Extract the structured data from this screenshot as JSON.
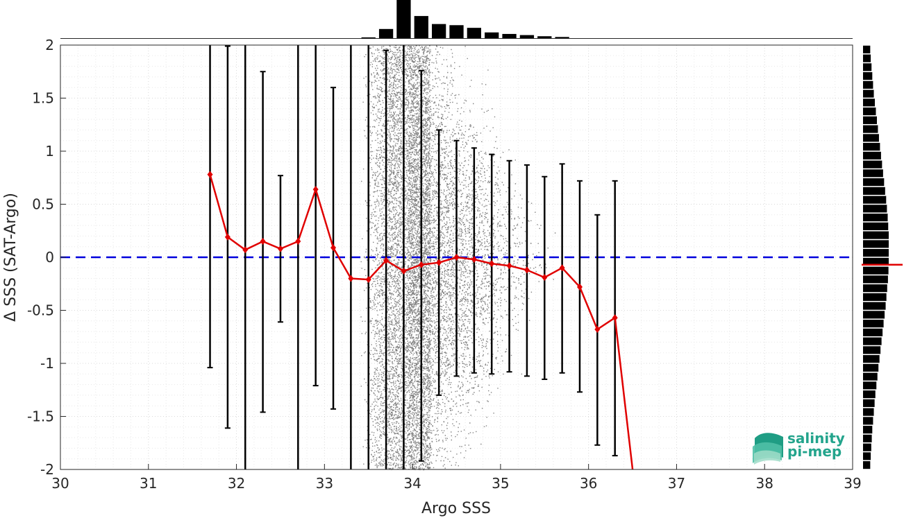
{
  "chart_data": {
    "type": "scatter",
    "title": "",
    "xlabel": "Argo SSS",
    "ylabel": "Δ SSS (SAT-Argo)",
    "xlim": [
      30,
      39
    ],
    "ylim": [
      -2,
      2
    ],
    "x_ticks": [
      "30",
      "31",
      "32",
      "33",
      "34",
      "35",
      "36",
      "37",
      "38",
      "39"
    ],
    "y_ticks": [
      "2",
      "1.5",
      "1",
      "0.5",
      "0",
      "-0.5",
      "-1",
      "-1.5",
      "-2"
    ],
    "grid": true,
    "reference_line": {
      "y": 0,
      "style": "dashed",
      "color": "#0000dd"
    },
    "scatter_cloud": {
      "description_color": "#808080",
      "x_range": [
        33.5,
        35.9
      ],
      "y_range": [
        -2,
        2
      ]
    },
    "series": [
      {
        "type": "line",
        "color": "#e00000",
        "x": [
          31.7,
          31.9,
          32.1,
          32.3,
          32.5,
          32.7,
          32.9,
          33.1,
          33.3,
          33.5,
          33.7,
          33.9,
          34.1,
          34.3,
          34.5,
          34.7,
          34.9,
          35.1,
          35.3,
          35.5,
          35.7,
          35.9,
          36.1,
          36.3
        ],
        "y": [
          0.78,
          0.19,
          0.07,
          0.15,
          0.08,
          0.15,
          0.64,
          0.09,
          -0.2,
          -0.21,
          -0.03,
          -0.13,
          -0.07,
          -0.05,
          0.0,
          -0.02,
          -0.06,
          -0.08,
          -0.12,
          -0.19,
          -0.1,
          -0.28,
          -0.68,
          -0.57
        ],
        "tail_to": [
          36.5,
          -2.0
        ]
      }
    ],
    "error_bars": [
      {
        "x": 31.7,
        "low": -1.04,
        "high": 2.0,
        "capped_top": false
      },
      {
        "x": 31.9,
        "low": -1.61,
        "high": 1.99
      },
      {
        "x": 32.1,
        "low": -2.0,
        "high": 2.0
      },
      {
        "x": 32.3,
        "low": -1.46,
        "high": 1.75
      },
      {
        "x": 32.5,
        "low": -0.61,
        "high": 0.77
      },
      {
        "x": 32.7,
        "low": -2.0,
        "high": 2.0
      },
      {
        "x": 32.9,
        "low": -1.21,
        "high": 2.0
      },
      {
        "x": 33.1,
        "low": -1.43,
        "high": 1.6
      },
      {
        "x": 33.3,
        "low": -2.0,
        "high": 2.0
      },
      {
        "x": 33.5,
        "low": -2.0,
        "high": 2.0
      },
      {
        "x": 33.7,
        "low": -2.0,
        "high": 1.95
      },
      {
        "x": 33.9,
        "low": -2.0,
        "high": 2.0
      },
      {
        "x": 34.1,
        "low": -1.92,
        "high": 1.76
      },
      {
        "x": 34.3,
        "low": -1.3,
        "high": 1.2
      },
      {
        "x": 34.5,
        "low": -1.12,
        "high": 1.1
      },
      {
        "x": 34.7,
        "low": -1.09,
        "high": 1.03
      },
      {
        "x": 34.9,
        "low": -1.1,
        "high": 0.97
      },
      {
        "x": 35.1,
        "low": -1.08,
        "high": 0.91
      },
      {
        "x": 35.3,
        "low": -1.12,
        "high": 0.87
      },
      {
        "x": 35.5,
        "low": -1.15,
        "high": 0.76
      },
      {
        "x": 35.7,
        "low": -1.09,
        "high": 0.88
      },
      {
        "x": 35.9,
        "low": -1.27,
        "high": 0.72
      },
      {
        "x": 36.1,
        "low": -1.77,
        "high": 0.4
      },
      {
        "x": 36.3,
        "low": -1.87,
        "high": 0.72
      }
    ],
    "top_histogram": {
      "bin_centers": [
        33.5,
        33.7,
        33.9,
        34.1,
        34.3,
        34.5,
        34.7,
        34.9,
        35.1,
        35.3,
        35.5,
        35.7
      ],
      "relative_counts": [
        0.02,
        0.24,
        1.0,
        0.58,
        0.37,
        0.34,
        0.27,
        0.15,
        0.11,
        0.08,
        0.05,
        0.03
      ]
    },
    "right_histogram": {
      "y_range": [
        -2,
        2
      ],
      "relative_counts": [
        0.28,
        0.3,
        0.33,
        0.36,
        0.39,
        0.42,
        0.46,
        0.5,
        0.54,
        0.58,
        0.62,
        0.66,
        0.7,
        0.74,
        0.78,
        0.82,
        0.86,
        0.9,
        0.93,
        0.96,
        0.98,
        1.0,
        1.0,
        1.0,
        1.0,
        0.99,
        0.97,
        0.94,
        0.91,
        0.88,
        0.84,
        0.8,
        0.76,
        0.72,
        0.68,
        0.64,
        0.6,
        0.56,
        0.52,
        0.48,
        0.45,
        0.42,
        0.39,
        0.36,
        0.34,
        0.32,
        0.3,
        0.28
      ],
      "mean_marker_y": -0.07,
      "mean_marker_color": "#e00000"
    },
    "colors": {
      "scatter": "#808080",
      "mean_line": "#e00000",
      "error_bar": "#000000",
      "zero_line": "#0000dd",
      "histogram": "#000000"
    }
  },
  "logo": {
    "line1": "salinity",
    "line2": "pi-mep",
    "color": "#23a48c"
  }
}
